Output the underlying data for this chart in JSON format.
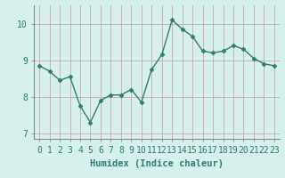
{
  "x": [
    0,
    1,
    2,
    3,
    4,
    5,
    6,
    7,
    8,
    9,
    10,
    11,
    12,
    13,
    14,
    15,
    16,
    17,
    18,
    19,
    20,
    21,
    22,
    23
  ],
  "y": [
    8.85,
    8.7,
    8.45,
    8.55,
    7.75,
    7.3,
    7.9,
    8.05,
    8.05,
    8.2,
    7.85,
    8.75,
    9.15,
    10.1,
    9.85,
    9.65,
    9.25,
    9.2,
    9.25,
    9.4,
    9.3,
    9.05,
    8.9,
    8.85
  ],
  "line_color": "#2e7d6e",
  "marker": "D",
  "marker_size": 2.5,
  "bg_color": "#d6f0ee",
  "grid_color": "#c8a8a8",
  "xlabel": "Humidex (Indice chaleur)",
  "xlim": [
    -0.5,
    23.5
  ],
  "ylim": [
    6.85,
    10.5
  ],
  "yticks": [
    7,
    8,
    9,
    10
  ],
  "xticks": [
    0,
    1,
    2,
    3,
    4,
    5,
    6,
    7,
    8,
    9,
    10,
    11,
    12,
    13,
    14,
    15,
    16,
    17,
    18,
    19,
    20,
    21,
    22,
    23
  ],
  "xlabel_fontsize": 7.5,
  "tick_fontsize": 7,
  "line_width": 1.0,
  "spine_color": "#888888"
}
